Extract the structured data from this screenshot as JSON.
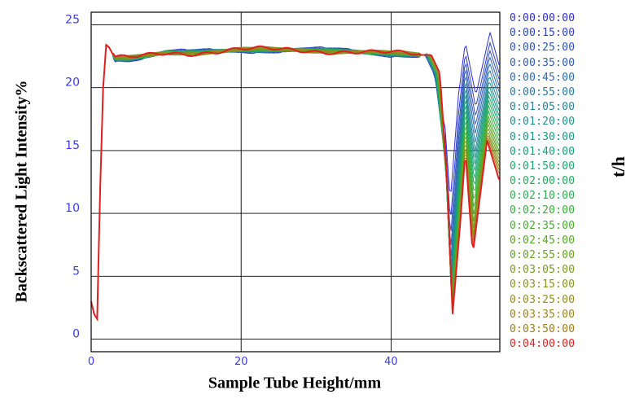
{
  "chart_data": {
    "type": "line",
    "xlabel": "Sample Tube Height/mm",
    "ylabel": "Backscattered Light Intensity%",
    "legend_title": "t/h",
    "xlim": [
      0,
      54.5
    ],
    "ylim": [
      -1,
      26
    ],
    "xticks": [
      0,
      20,
      40
    ],
    "yticks": [
      0,
      5,
      10,
      15,
      20,
      25
    ],
    "grid": true,
    "legend_placement": "right",
    "axis_tick_color": "#3a3af0",
    "series": [
      {
        "name": "0:00:00:00",
        "color": "#2d2dd6",
        "first_dip_min": 11.0,
        "right_peak": 24.4,
        "end_value": 21.6
      },
      {
        "name": "0:00:15:00",
        "color": "#2e40cc",
        "first_dip_min": 9.2,
        "right_peak": 23.6,
        "end_value": 21.0
      },
      {
        "name": "0:00:25:00",
        "color": "#3050c0",
        "first_dip_min": 8.0,
        "right_peak": 23.0,
        "end_value": 20.5
      },
      {
        "name": "0:00:35:00",
        "color": "#305eb8",
        "first_dip_min": 7.0,
        "right_peak": 22.5,
        "end_value": 20.0
      },
      {
        "name": "0:00:45:00",
        "color": "#2e6ab0",
        "first_dip_min": 6.2,
        "right_peak": 22.0,
        "end_value": 19.5
      },
      {
        "name": "0:00:55:00",
        "color": "#2a78a8",
        "first_dip_min": 5.6,
        "right_peak": 21.5,
        "end_value": 19.0
      },
      {
        "name": "0:01:05:00",
        "color": "#268498",
        "first_dip_min": 5.0,
        "right_peak": 21.0,
        "end_value": 18.5
      },
      {
        "name": "0:01:20:00",
        "color": "#1f8e8e",
        "first_dip_min": 4.6,
        "right_peak": 20.6,
        "end_value": 18.0
      },
      {
        "name": "0:01:30:00",
        "color": "#1a9684",
        "first_dip_min": 4.2,
        "right_peak": 20.2,
        "end_value": 17.6
      },
      {
        "name": "0:01:40:00",
        "color": "#19a07a",
        "first_dip_min": 3.9,
        "right_peak": 19.8,
        "end_value": 17.2
      },
      {
        "name": "0:01:50:00",
        "color": "#1ca66c",
        "first_dip_min": 3.6,
        "right_peak": 19.4,
        "end_value": 16.8
      },
      {
        "name": "0:02:00:00",
        "color": "#22aa5c",
        "first_dip_min": 3.4,
        "right_peak": 19.0,
        "end_value": 16.4
      },
      {
        "name": "0:02:10:00",
        "color": "#2aae4c",
        "first_dip_min": 3.2,
        "right_peak": 18.6,
        "end_value": 16.0
      },
      {
        "name": "0:02:20:00",
        "color": "#36ae3a",
        "first_dip_min": 3.0,
        "right_peak": 18.2,
        "end_value": 15.6
      },
      {
        "name": "0:02:35:00",
        "color": "#46ac2e",
        "first_dip_min": 2.8,
        "right_peak": 17.8,
        "end_value": 15.2
      },
      {
        "name": "0:02:45:00",
        "color": "#56a828",
        "first_dip_min": 2.7,
        "right_peak": 17.5,
        "end_value": 14.8
      },
      {
        "name": "0:02:55:00",
        "color": "#68a224",
        "first_dip_min": 2.6,
        "right_peak": 17.2,
        "end_value": 14.5
      },
      {
        "name": "0:03:05:00",
        "color": "#789c22",
        "first_dip_min": 2.5,
        "right_peak": 16.9,
        "end_value": 14.2
      },
      {
        "name": "0:03:15:00",
        "color": "#869420",
        "first_dip_min": 2.4,
        "right_peak": 16.6,
        "end_value": 13.9
      },
      {
        "name": "0:03:25:00",
        "color": "#928c1e",
        "first_dip_min": 2.3,
        "right_peak": 16.4,
        "end_value": 13.6
      },
      {
        "name": "0:03:35:00",
        "color": "#9a841c",
        "first_dip_min": 2.2,
        "right_peak": 16.2,
        "end_value": 13.3
      },
      {
        "name": "0:03:50:00",
        "color": "#a07c1a",
        "first_dip_min": 2.1,
        "right_peak": 16.0,
        "end_value": 13.0
      },
      {
        "name": "0:04:00:00",
        "color": "#e02020",
        "first_dip_min": 2.0,
        "right_peak": 15.8,
        "end_value": 12.5
      }
    ]
  }
}
